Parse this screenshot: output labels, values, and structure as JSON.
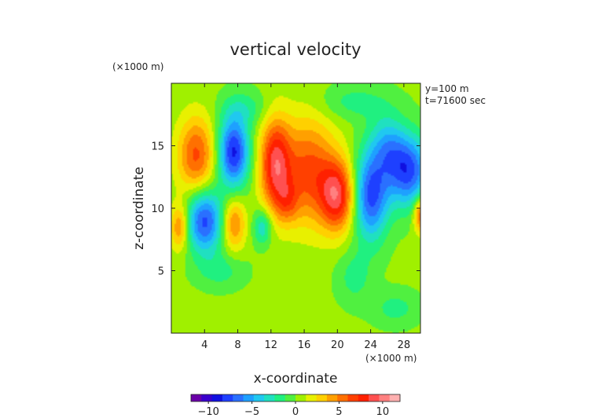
{
  "chart_data": {
    "type": "heatmap",
    "title": "vertical velocity",
    "xlabel": "x-coordinate",
    "ylabel": "z-coordinate",
    "x_unit_label": "(×1000 m)",
    "y_unit_label": "(×1000 m)",
    "annotations": [
      "y=100 m",
      "t=71600 sec"
    ],
    "xlim": [
      0,
      30
    ],
    "ylim": [
      0,
      20
    ],
    "x_ticks": [
      4,
      8,
      12,
      16,
      20,
      24,
      28
    ],
    "y_ticks": [
      5,
      10,
      15
    ],
    "field_range": [
      -12,
      12
    ],
    "colorbar": {
      "range": [
        -12,
        12
      ],
      "ticks": [
        -10,
        -5,
        0,
        5,
        10
      ],
      "colors": [
        "#6a00a8",
        "#3a00cc",
        "#1010e0",
        "#1e40ff",
        "#2a70ff",
        "#1ea0ff",
        "#20c8f0",
        "#20e0c0",
        "#20f080",
        "#50f040",
        "#a0f000",
        "#e8f000",
        "#ffd000",
        "#ffa000",
        "#ff7000",
        "#ff4000",
        "#ff2000",
        "#ff5050",
        "#ff8080",
        "#ffb0b0"
      ]
    },
    "features": [
      {
        "x": 3.0,
        "z": 14.2,
        "value": 6,
        "sx": 1.6,
        "sy": 2.2
      },
      {
        "x": 1.0,
        "z": 8.5,
        "value": 5,
        "sx": 0.8,
        "sy": 1.3
      },
      {
        "x": 7.5,
        "z": 14.5,
        "value": -9,
        "sx": 1.3,
        "sy": 2.0
      },
      {
        "x": 4.0,
        "z": 9.0,
        "value": -8,
        "sx": 1.6,
        "sy": 1.8
      },
      {
        "x": 7.5,
        "z": 8.8,
        "value": 5,
        "sx": 1.0,
        "sy": 1.5
      },
      {
        "x": 12.5,
        "z": 13.5,
        "value": 8,
        "sx": 1.3,
        "sy": 2.6
      },
      {
        "x": 16.5,
        "z": 13.0,
        "value": 6,
        "sx": 2.3,
        "sy": 3.0
      },
      {
        "x": 20.0,
        "z": 11.0,
        "value": 8,
        "sx": 1.5,
        "sy": 2.0
      },
      {
        "x": 14.0,
        "z": 10.5,
        "value": 3,
        "sx": 1.0,
        "sy": 1.2
      },
      {
        "x": 11.0,
        "z": 8.5,
        "value": -4,
        "sx": 0.8,
        "sy": 1.0
      },
      {
        "x": 24.0,
        "z": 11.0,
        "value": -8,
        "sx": 1.5,
        "sy": 2.5
      },
      {
        "x": 28.5,
        "z": 13.0,
        "value": -8,
        "sx": 1.8,
        "sy": 2.0
      },
      {
        "x": 26.0,
        "z": 15.0,
        "value": -4,
        "sx": 1.5,
        "sy": 1.8
      },
      {
        "x": 30.0,
        "z": 9.5,
        "value": 6,
        "sx": 0.6,
        "sy": 1.0
      },
      {
        "x": 22.0,
        "z": 4.5,
        "value": -2,
        "sx": 1.5,
        "sy": 1.5
      },
      {
        "x": 6.0,
        "z": 5.0,
        "value": -2,
        "sx": 2.0,
        "sy": 1.0
      },
      {
        "x": 27.0,
        "z": 2.0,
        "value": -2,
        "sx": 2.0,
        "sy": 1.0
      },
      {
        "x": 9.0,
        "z": 18.0,
        "value": -2,
        "sx": 2.0,
        "sy": 1.0
      },
      {
        "x": 22.0,
        "z": 18.5,
        "value": -2,
        "sx": 3.0,
        "sy": 1.0
      }
    ]
  }
}
